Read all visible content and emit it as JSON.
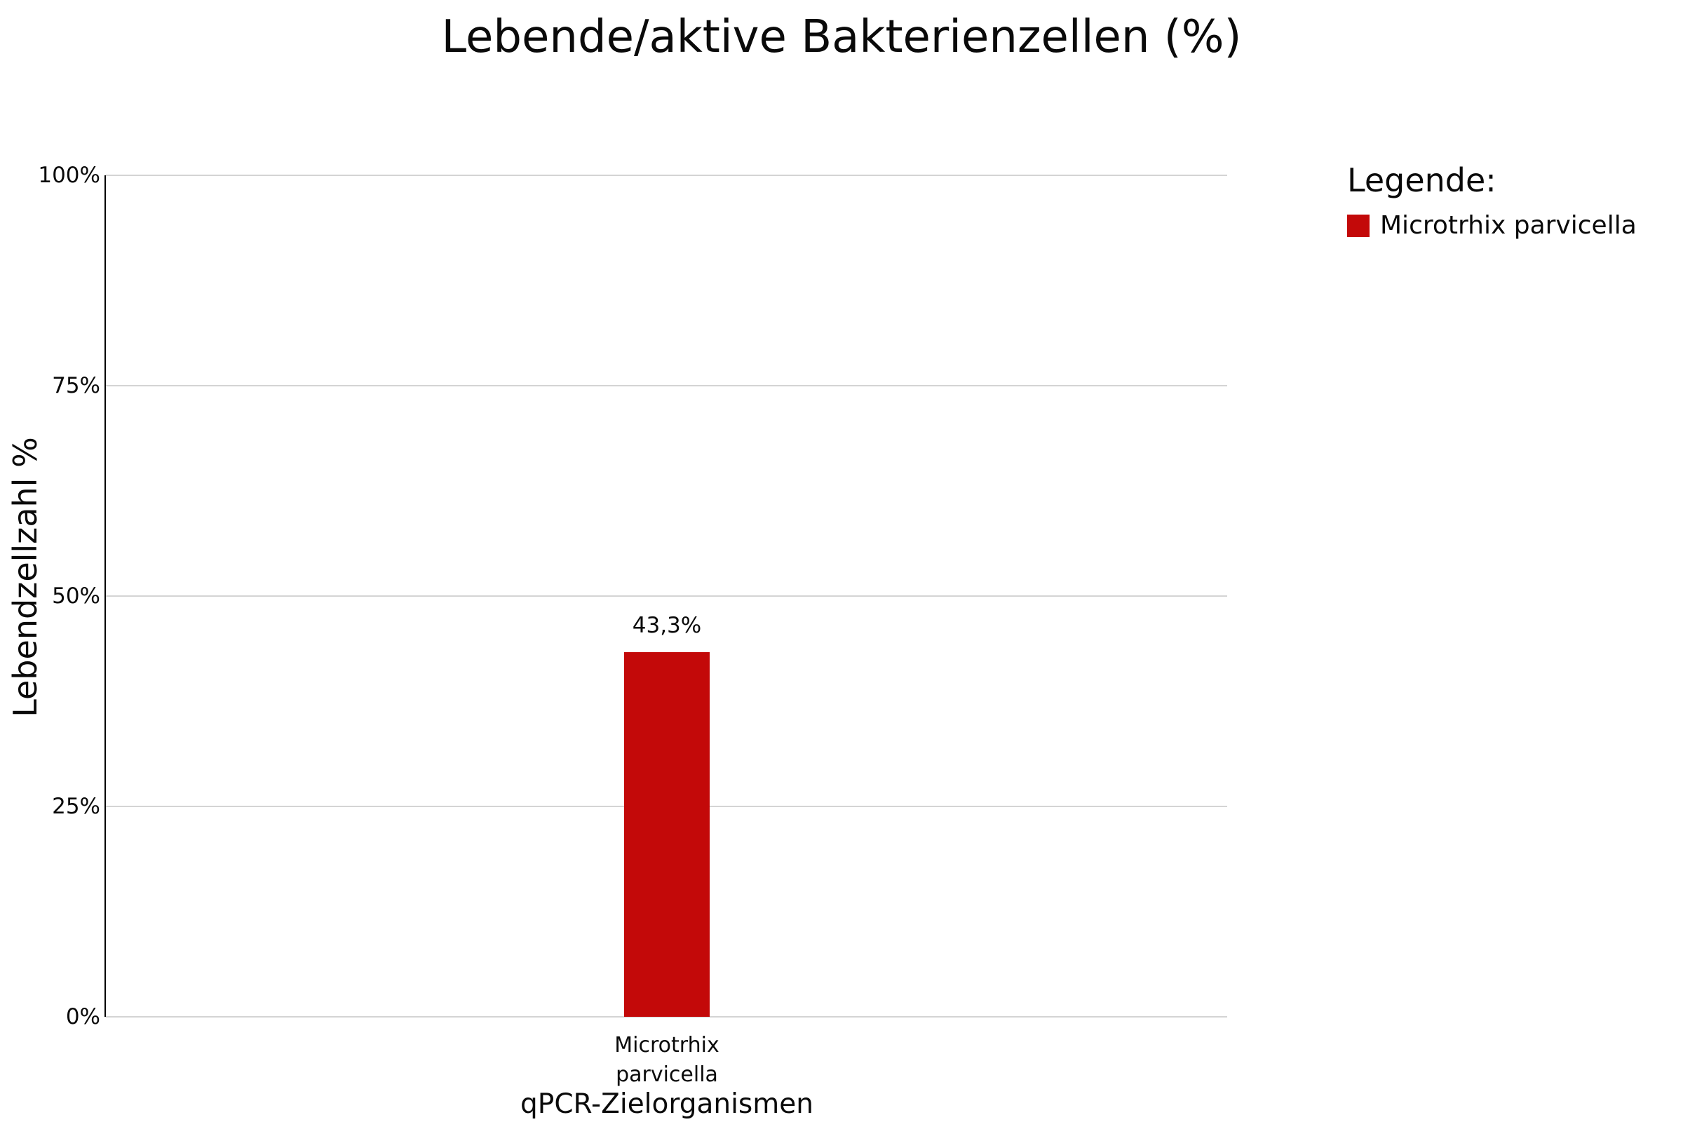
{
  "page": {
    "background": "#ffffff"
  },
  "chart_data": {
    "type": "bar",
    "title": "Lebende/aktive Bakterienzellen (%)",
    "xlabel": "qPCR-Zielorganismen",
    "ylabel": "Lebendzellzahl %",
    "categories": [
      "Microtrhix parvicella"
    ],
    "values": [
      43.3
    ],
    "value_labels": [
      "43,3%"
    ],
    "ylim": [
      0,
      100
    ],
    "ytick_labels": [
      "0%",
      "25%",
      "50%",
      "75%",
      "100%"
    ],
    "grid": true,
    "gridline_color": "#d4d4d4",
    "axis_line_color": "#000000",
    "bar_color": "#c30909",
    "legend": {
      "heading": "Legende:",
      "position": "right-top",
      "entries": [
        {
          "label": "Microtrhix parvicella",
          "color": "#c30909"
        }
      ]
    }
  }
}
